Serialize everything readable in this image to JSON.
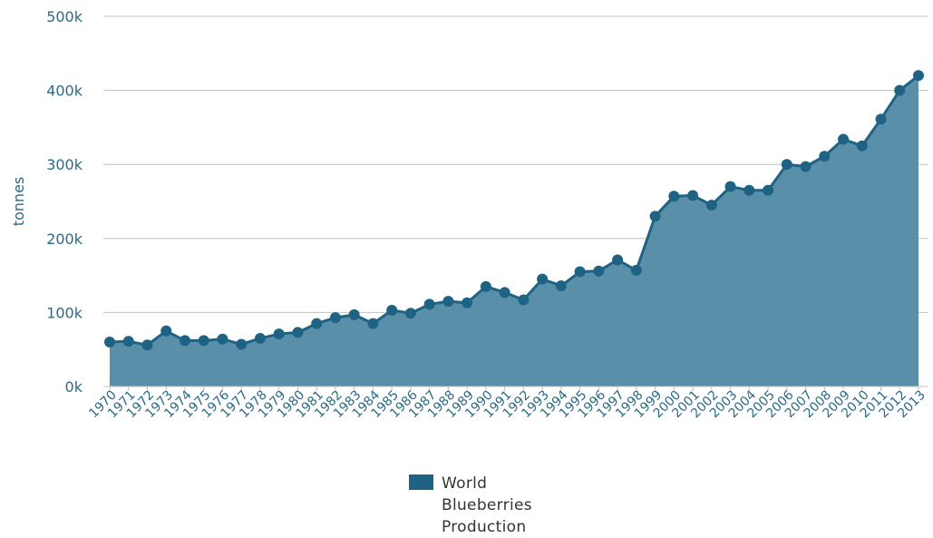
{
  "chart_data": {
    "type": "area",
    "title": "",
    "xlabel": "",
    "ylabel": "tonnes",
    "ylim": [
      0,
      500000
    ],
    "yticks": [
      0,
      100000,
      200000,
      300000,
      400000,
      500000
    ],
    "ytick_labels": [
      "0k",
      "100k",
      "200k",
      "300k",
      "400k",
      "500k"
    ],
    "grid": true,
    "legend_position": "bottom-center",
    "categories": [
      "1970",
      "1971",
      "1972",
      "1973",
      "1974",
      "1975",
      "1976",
      "1977",
      "1978",
      "1979",
      "1980",
      "1981",
      "1982",
      "1983",
      "1984",
      "1985",
      "1986",
      "1987",
      "1988",
      "1989",
      "1990",
      "1991",
      "1992",
      "1993",
      "1994",
      "1995",
      "1996",
      "1997",
      "1998",
      "1999",
      "2000",
      "2001",
      "2002",
      "2003",
      "2004",
      "2005",
      "2006",
      "2007",
      "2008",
      "2009",
      "2010",
      "2011",
      "2012",
      "2013"
    ],
    "series": [
      {
        "name": "World Blueberries Production",
        "color": "#1f6384",
        "fill_color": "#5a8faa",
        "values": [
          60000,
          61000,
          56000,
          75000,
          62000,
          62000,
          64000,
          57000,
          65000,
          71000,
          73000,
          85000,
          93000,
          97000,
          85000,
          103000,
          99000,
          111000,
          115000,
          113000,
          135000,
          127000,
          117000,
          145000,
          136000,
          155000,
          156000,
          171000,
          157000,
          230000,
          257000,
          258000,
          245000,
          270000,
          265000,
          265000,
          300000,
          297000,
          311000,
          334000,
          325000,
          361000,
          400000,
          420000
        ]
      }
    ]
  }
}
